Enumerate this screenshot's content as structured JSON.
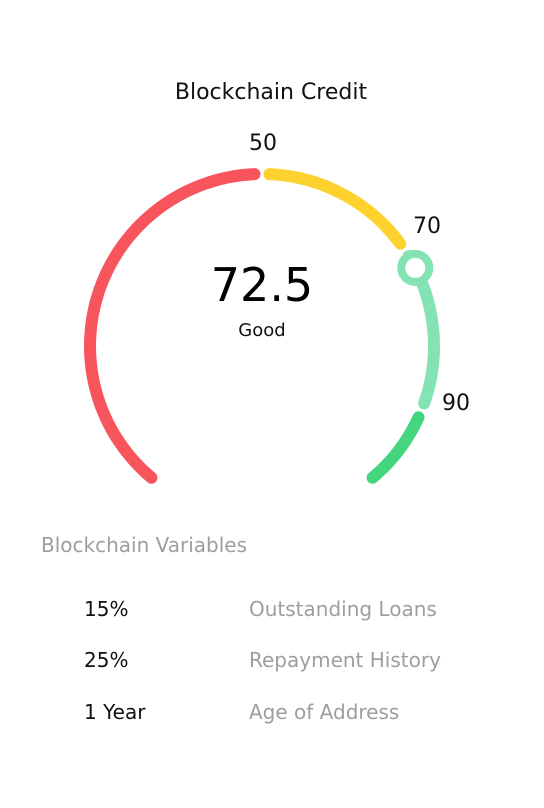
{
  "title": "Blockchain Credit",
  "gauge": {
    "min": 0,
    "max": 100,
    "score": 72.5,
    "rating": "Good",
    "ticks": [
      "50",
      "70",
      "90"
    ],
    "segments": [
      {
        "from": 0,
        "to": 50,
        "color": "#f7545c"
      },
      {
        "from": 50,
        "to": 70,
        "color": "#fdd22f"
      },
      {
        "from": 70,
        "to": 90,
        "color": "#83e3b2"
      },
      {
        "from": 90,
        "to": 100,
        "color": "#43d67e"
      }
    ],
    "marker_color": "#83e3b2"
  },
  "variables": {
    "title": "Blockchain Variables",
    "rows": [
      {
        "value": "15%",
        "name": "Outstanding Loans"
      },
      {
        "value": "25%",
        "name": "Repayment History"
      },
      {
        "value": "1 Year",
        "name": "Age of Address"
      }
    ]
  }
}
